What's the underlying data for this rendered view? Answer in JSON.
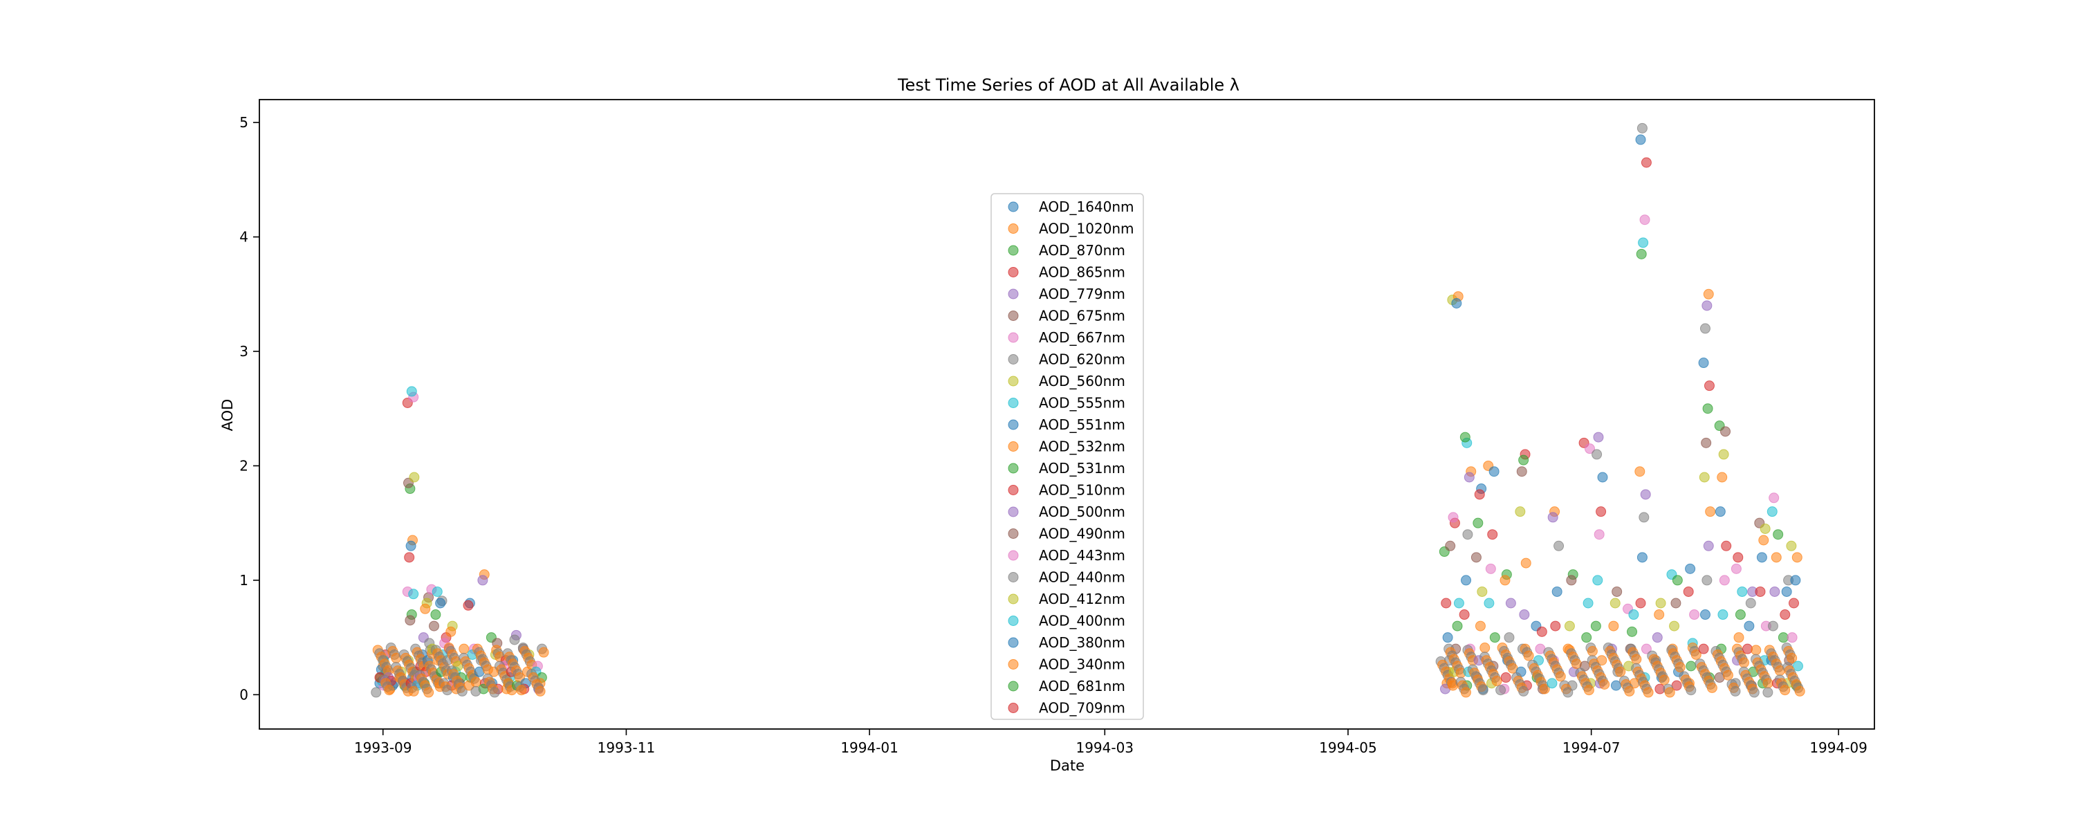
{
  "chart_data": {
    "type": "scatter",
    "title": "Test Time Series of AOD at All Available λ",
    "xlabel": "Date",
    "ylabel": "AOD",
    "x_ticks": [
      "1993-09",
      "1993-11",
      "1994-01",
      "1994-03",
      "1994-05",
      "1994-07",
      "1994-09"
    ],
    "y_ticks": [
      "0",
      "1",
      "2",
      "3",
      "4",
      "5"
    ],
    "xlim": [
      "1993-08-01",
      "1994-09-10"
    ],
    "ylim": [
      -0.3,
      5.2
    ],
    "grid": false,
    "legend_position": "center",
    "series": [
      {
        "name": "AOD_1640nm",
        "color": "#1f77b4"
      },
      {
        "name": "AOD_1020nm",
        "color": "#ff7f0e"
      },
      {
        "name": "AOD_870nm",
        "color": "#2ca02c"
      },
      {
        "name": "AOD_865nm",
        "color": "#d62728"
      },
      {
        "name": "AOD_779nm",
        "color": "#9467bd"
      },
      {
        "name": "AOD_675nm",
        "color": "#8c564b"
      },
      {
        "name": "AOD_667nm",
        "color": "#e377c2"
      },
      {
        "name": "AOD_620nm",
        "color": "#7f7f7f"
      },
      {
        "name": "AOD_560nm",
        "color": "#bcbd22"
      },
      {
        "name": "AOD_555nm",
        "color": "#17becf"
      },
      {
        "name": "AOD_551nm",
        "color": "#1f77b4"
      },
      {
        "name": "AOD_532nm",
        "color": "#ff7f0e"
      },
      {
        "name": "AOD_531nm",
        "color": "#2ca02c"
      },
      {
        "name": "AOD_510nm",
        "color": "#d62728"
      },
      {
        "name": "AOD_500nm",
        "color": "#9467bd"
      },
      {
        "name": "AOD_490nm",
        "color": "#8c564b"
      },
      {
        "name": "AOD_443nm",
        "color": "#e377c2"
      },
      {
        "name": "AOD_440nm",
        "color": "#7f7f7f"
      },
      {
        "name": "AOD_412nm",
        "color": "#bcbd22"
      },
      {
        "name": "AOD_400nm",
        "color": "#17becf"
      },
      {
        "name": "AOD_380nm",
        "color": "#1f77b4"
      },
      {
        "name": "AOD_340nm",
        "color": "#ff7f0e"
      },
      {
        "name": "AOD_681nm",
        "color": "#2ca02c"
      },
      {
        "name": "AOD_709nm",
        "color": "#d62728"
      }
    ],
    "points": [
      {
        "date": "1993-09-01",
        "values": [
          0.1,
          0.35,
          0.08,
          0.12,
          0.15,
          0.2,
          0.18,
          0.25,
          0.22,
          0.15,
          0.12,
          0.3
        ]
      },
      {
        "date": "1993-09-03",
        "values": [
          0.05,
          0.15,
          0.1,
          0.08,
          0.12
        ]
      },
      {
        "date": "1993-09-06",
        "values": [
          0.08,
          0.12,
          0.2,
          0.15,
          0.1
        ]
      },
      {
        "date": "1993-09-08",
        "values": [
          2.55,
          2.6,
          2.65,
          1.8,
          1.85,
          1.9,
          1.35,
          1.3,
          1.2,
          0.9,
          0.88,
          0.7,
          0.65,
          0.3,
          0.2,
          0.15,
          0.1
        ]
      },
      {
        "date": "1993-09-10",
        "values": [
          0.1,
          0.2,
          0.35,
          0.25,
          0.15,
          0.08
        ]
      },
      {
        "date": "1993-09-12",
        "values": [
          0.85,
          0.8,
          0.75,
          0.5,
          0.45,
          0.3,
          0.2,
          0.1
        ]
      },
      {
        "date": "1993-09-14",
        "values": [
          0.92,
          0.9,
          0.7,
          0.6,
          0.4,
          0.3,
          0.15
        ]
      },
      {
        "date": "1993-09-16",
        "values": [
          0.82,
          0.8,
          0.5,
          0.45,
          0.35,
          0.2,
          0.1
        ]
      },
      {
        "date": "1993-09-18",
        "values": [
          0.6,
          0.55,
          0.4,
          0.3,
          0.15,
          0.08
        ]
      },
      {
        "date": "1993-09-20",
        "values": [
          0.2,
          0.15,
          0.1,
          0.25,
          0.05
        ]
      },
      {
        "date": "1993-09-23",
        "values": [
          0.8,
          0.78,
          0.4,
          0.35,
          0.15,
          0.08
        ]
      },
      {
        "date": "1993-09-26",
        "values": [
          1.05,
          1.0,
          0.3,
          0.2,
          0.1,
          0.05
        ]
      },
      {
        "date": "1993-09-29",
        "values": [
          0.5,
          0.45,
          0.35,
          0.2,
          0.1,
          0.05
        ]
      },
      {
        "date": "1993-10-02",
        "values": [
          0.3,
          0.25,
          0.15,
          0.1,
          0.05
        ]
      },
      {
        "date": "1993-10-04",
        "values": [
          0.52,
          0.48,
          0.3,
          0.2,
          0.08
        ]
      },
      {
        "date": "1993-10-07",
        "values": [
          0.4,
          0.35,
          0.2,
          0.1,
          0.05
        ]
      },
      {
        "date": "1993-10-10",
        "values": [
          0.25,
          0.2,
          0.15,
          0.1,
          0.05
        ]
      },
      {
        "date": "1994-05-26",
        "values": [
          0.3,
          0.5,
          0.8,
          1.25,
          1.3,
          0.2,
          0.1,
          0.05
        ]
      },
      {
        "date": "1994-05-28",
        "values": [
          3.45,
          3.48,
          3.42,
          1.5,
          1.55,
          0.8,
          0.6,
          0.4,
          0.2,
          0.1
        ]
      },
      {
        "date": "1994-05-31",
        "values": [
          2.2,
          2.25,
          1.95,
          1.9,
          1.4,
          1.0,
          0.7,
          0.4,
          0.2,
          0.08
        ]
      },
      {
        "date": "1994-06-03",
        "values": [
          1.8,
          1.75,
          1.5,
          1.2,
          0.9,
          0.6,
          0.3,
          0.15,
          0.05
        ]
      },
      {
        "date": "1994-06-06",
        "values": [
          2.0,
          1.95,
          1.4,
          1.1,
          0.8,
          0.5,
          0.25,
          0.1
        ]
      },
      {
        "date": "1994-06-10",
        "values": [
          1.05,
          1.0,
          0.8,
          0.5,
          0.3,
          0.15,
          0.05
        ]
      },
      {
        "date": "1994-06-14",
        "values": [
          2.1,
          2.05,
          1.95,
          1.6,
          1.15,
          0.7,
          0.4,
          0.2,
          0.08
        ]
      },
      {
        "date": "1994-06-18",
        "values": [
          0.6,
          0.55,
          0.4,
          0.3,
          0.15,
          0.05
        ]
      },
      {
        "date": "1994-06-22",
        "values": [
          1.6,
          1.55,
          1.3,
          0.9,
          0.6,
          0.3,
          0.1
        ]
      },
      {
        "date": "1994-06-26",
        "values": [
          1.05,
          1.0,
          0.6,
          0.4,
          0.2,
          0.08
        ]
      },
      {
        "date": "1994-06-30",
        "values": [
          2.2,
          2.15,
          0.8,
          0.5,
          0.25,
          0.1
        ]
      },
      {
        "date": "1994-07-03",
        "values": [
          2.25,
          2.1,
          1.9,
          1.6,
          1.4,
          1.0,
          0.6,
          0.3,
          0.1
        ]
      },
      {
        "date": "1994-07-07",
        "values": [
          0.9,
          0.8,
          0.6,
          0.4,
          0.2,
          0.08
        ]
      },
      {
        "date": "1994-07-11",
        "values": [
          0.75,
          0.7,
          0.55,
          0.4,
          0.25,
          0.1
        ]
      },
      {
        "date": "1994-07-14",
        "values": [
          4.95,
          4.85,
          4.65,
          4.15,
          3.95,
          3.85,
          1.95,
          1.75,
          1.55,
          1.2,
          0.8,
          0.4,
          0.15
        ]
      },
      {
        "date": "1994-07-18",
        "values": [
          0.8,
          0.7,
          0.5,
          0.3,
          0.15,
          0.05
        ]
      },
      {
        "date": "1994-07-22",
        "values": [
          1.05,
          1.0,
          0.8,
          0.6,
          0.4,
          0.2,
          0.08
        ]
      },
      {
        "date": "1994-07-26",
        "values": [
          1.1,
          0.9,
          0.7,
          0.45,
          0.25,
          0.1
        ]
      },
      {
        "date": "1994-07-30",
        "values": [
          3.5,
          3.4,
          3.2,
          2.9,
          2.7,
          2.5,
          2.2,
          1.9,
          1.6,
          1.3,
          1.0,
          0.7,
          0.4,
          0.15
        ]
      },
      {
        "date": "1994-08-03",
        "values": [
          2.35,
          2.3,
          2.1,
          1.9,
          1.6,
          1.3,
          1.0,
          0.7,
          0.4,
          0.15
        ]
      },
      {
        "date": "1994-08-07",
        "values": [
          1.2,
          1.1,
          0.9,
          0.7,
          0.5,
          0.3,
          0.1
        ]
      },
      {
        "date": "1994-08-10",
        "values": [
          0.9,
          0.8,
          0.6,
          0.4,
          0.2,
          0.08
        ]
      },
      {
        "date": "1994-08-13",
        "values": [
          1.5,
          1.45,
          1.35,
          1.2,
          0.9,
          0.6,
          0.3,
          0.1
        ]
      },
      {
        "date": "1994-08-16",
        "values": [
          1.72,
          1.6,
          1.4,
          1.2,
          0.9,
          0.6,
          0.3,
          0.1
        ]
      },
      {
        "date": "1994-08-19",
        "values": [
          1.0,
          0.9,
          0.7,
          0.5,
          0.3,
          0.1
        ]
      },
      {
        "date": "1994-08-21",
        "values": [
          1.3,
          1.2,
          1.0,
          0.8,
          0.5,
          0.25,
          0.08
        ]
      }
    ]
  }
}
